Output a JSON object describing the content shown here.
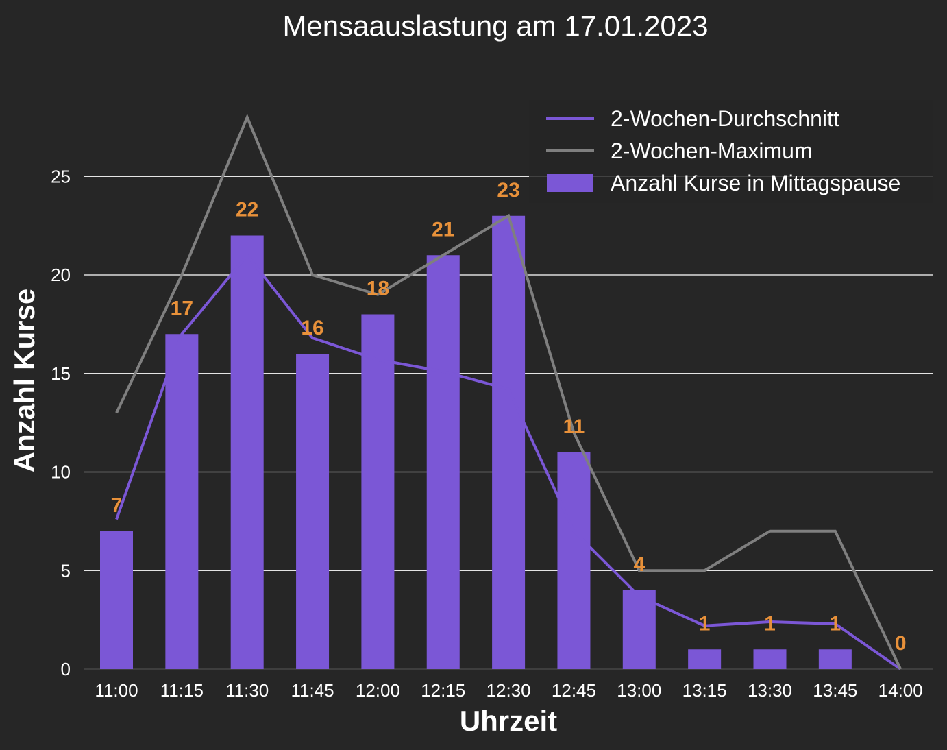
{
  "chart_data": {
    "type": "bar",
    "title": "Mensaauslastung am 17.01.2023",
    "xlabel": "Uhrzeit",
    "ylabel": "Anzahl Kurse",
    "categories": [
      "11:00",
      "11:15",
      "11:30",
      "11:45",
      "12:00",
      "12:15",
      "12:30",
      "12:45",
      "13:00",
      "13:15",
      "13:30",
      "13:45",
      "14:00"
    ],
    "ylim": [
      0,
      29
    ],
    "yticks": [
      0,
      5,
      10,
      15,
      20,
      25
    ],
    "grid": true,
    "legend_position": "top-right",
    "series": [
      {
        "name": "Anzahl Kurse in Mittagspause",
        "type": "bar",
        "color": "#7b57d6",
        "values": [
          7,
          17,
          22,
          16,
          18,
          21,
          23,
          11,
          4,
          1,
          1,
          1,
          0
        ]
      },
      {
        "name": "2-Wochen-Durchschnitt",
        "type": "line",
        "color": "#7b57d6",
        "values": [
          7.6,
          17,
          21,
          16.8,
          15.7,
          15.1,
          14.2,
          7,
          3.7,
          2.2,
          2.4,
          2.3,
          0
        ]
      },
      {
        "name": "2-Wochen-Maximum",
        "type": "line",
        "color": "#7f7f7f",
        "values": [
          13,
          20,
          28,
          20,
          19,
          21,
          23,
          12,
          5,
          5,
          7,
          7,
          0
        ]
      }
    ],
    "data_labels": [
      "7",
      "17",
      "22",
      "16",
      "18",
      "21",
      "23",
      "11",
      "4",
      "1",
      "1",
      "1",
      "0"
    ],
    "data_label_color": "#e8913a"
  }
}
